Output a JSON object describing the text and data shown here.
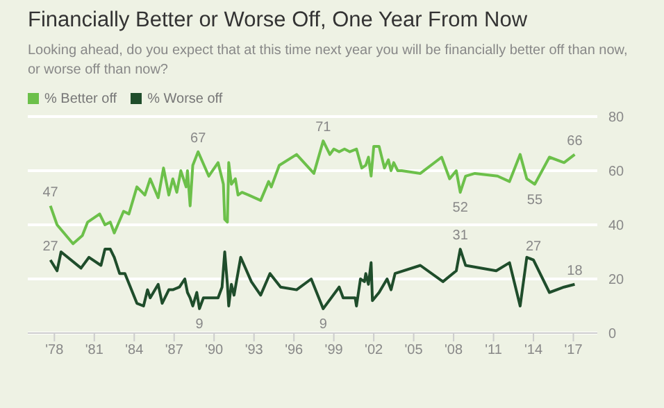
{
  "chart_data": {
    "type": "line",
    "title": "Financially Better or Worse Off, One Year From Now",
    "subtitle": "Looking ahead, do you expect that at this time next year you will be financially better off than now, or worse off than now?",
    "series": [
      {
        "name": "% Better off",
        "color": "#6cc04a",
        "x": [
          1977.7,
          1978.2,
          1979.4,
          1980.1,
          1980.5,
          1981.4,
          1981.8,
          1982.2,
          1982.5,
          1983.2,
          1983.6,
          1984.2,
          1984.6,
          1984.8,
          1985.2,
          1985.8,
          1986.2,
          1986.6,
          1986.9,
          1987.2,
          1987.5,
          1987.9,
          1988.0,
          1988.2,
          1988.4,
          1988.8,
          1989.6,
          1990.3,
          1990.7,
          1990.8,
          1991.0,
          1991.1,
          1991.3,
          1991.6,
          1991.8,
          1992.1,
          1992.6,
          1993.5,
          1994.1,
          1994.3,
          1994.9,
          1996.2,
          1997.5,
          1998.2,
          1998.7,
          1999.0,
          1999.4,
          1999.8,
          2000.2,
          2000.7,
          2001.1,
          2001.4,
          2001.6,
          2001.8,
          2002.0,
          2002.4,
          2002.8,
          2003.1,
          2003.3,
          2003.5,
          2003.8,
          2004.1,
          2005.5,
          2007.1,
          2007.7,
          2008.2,
          2008.5,
          2008.9,
          2009.6,
          2011.3,
          2012.2,
          2013.0,
          2013.5,
          2014.1,
          2015.2,
          2016.3,
          2017.1
        ],
        "values": [
          47,
          40,
          33,
          36,
          41,
          44,
          40,
          41,
          37,
          45,
          44,
          54,
          52,
          51,
          57,
          50,
          61,
          51,
          57,
          52,
          60,
          54,
          60,
          47,
          62,
          67,
          58,
          63,
          55,
          42,
          41,
          63,
          55,
          57,
          51,
          52,
          51,
          49,
          56,
          54,
          62,
          66,
          59,
          71,
          66,
          68,
          67,
          68,
          67,
          68,
          61,
          62,
          65,
          58,
          69,
          69,
          61,
          64,
          60,
          63,
          60,
          60,
          59,
          65,
          57,
          60,
          52,
          58,
          59,
          58,
          56,
          66,
          57,
          55,
          65,
          63,
          66
        ]
      },
      {
        "name": "% Worse off",
        "color": "#1f4d2b",
        "x": [
          1977.7,
          1978.2,
          1978.5,
          1980.0,
          1980.6,
          1981.5,
          1981.8,
          1982.2,
          1982.5,
          1982.9,
          1983.3,
          1984.2,
          1984.7,
          1985.0,
          1985.2,
          1985.8,
          1986.1,
          1986.6,
          1986.9,
          1987.4,
          1987.8,
          1988.0,
          1988.2,
          1988.4,
          1988.7,
          1988.9,
          1989.2,
          1990.3,
          1990.6,
          1990.8,
          1991.0,
          1991.1,
          1991.3,
          1991.5,
          1992.0,
          1992.8,
          1993.5,
          1994.2,
          1995.0,
          1996.2,
          1997.3,
          1998.2,
          1999.4,
          1999.7,
          2000.6,
          2000.7,
          2001.0,
          2001.3,
          2001.4,
          2001.6,
          2001.8,
          2001.9,
          2002.4,
          2003.0,
          2003.3,
          2003.6,
          2005.5,
          2007.2,
          2008.2,
          2008.5,
          2008.9,
          2011.2,
          2012.2,
          2013.0,
          2013.5,
          2014.0,
          2015.2,
          2016.3,
          2017.1
        ],
        "values": [
          27,
          23,
          30,
          24,
          28,
          25,
          31,
          31,
          28,
          22,
          22,
          11,
          10,
          16,
          13,
          18,
          11,
          16,
          16,
          17,
          20,
          15,
          13,
          10,
          15,
          9,
          13,
          13,
          17,
          30,
          18,
          10,
          18,
          14,
          28,
          19,
          14,
          22,
          17,
          16,
          20,
          9,
          17,
          13,
          13,
          10,
          20,
          19,
          22,
          18,
          26,
          12,
          15,
          20,
          16,
          22,
          25,
          19,
          23,
          31,
          25,
          23,
          26,
          10,
          28,
          27,
          15,
          17,
          18
        ]
      }
    ],
    "xlim": [
      1976,
      2018.8
    ],
    "xticks": [
      {
        "value": 1978,
        "label": "'78"
      },
      {
        "value": 1981,
        "label": "'81"
      },
      {
        "value": 1984,
        "label": "'84"
      },
      {
        "value": 1987,
        "label": "'87"
      },
      {
        "value": 1990,
        "label": "'90"
      },
      {
        "value": 1993,
        "label": "'93"
      },
      {
        "value": 1996,
        "label": "'96"
      },
      {
        "value": 1999,
        "label": "'99"
      },
      {
        "value": 2002,
        "label": "'02"
      },
      {
        "value": 2005,
        "label": "'05"
      },
      {
        "value": 2008,
        "label": "'08"
      },
      {
        "value": 2011,
        "label": "'11"
      },
      {
        "value": 2014,
        "label": "'14"
      },
      {
        "value": 2017,
        "label": "'17"
      }
    ],
    "ylim": [
      0,
      80
    ],
    "yticks": [
      0,
      20,
      40,
      60,
      80
    ],
    "grid": "y",
    "legend": "top left",
    "marker": "none",
    "line_style": "solid",
    "annotations": [
      {
        "text": "47",
        "x": 1977.7,
        "y": 47
      },
      {
        "text": "27",
        "x": 1977.7,
        "y": 27
      },
      {
        "text": "67",
        "x": 1988.8,
        "y": 67
      },
      {
        "text": "9",
        "x": 1988.9,
        "y": 9
      },
      {
        "text": "71",
        "x": 1998.2,
        "y": 71
      },
      {
        "text": "9",
        "x": 1998.2,
        "y": 9
      },
      {
        "text": "52",
        "x": 2008.5,
        "y": 52
      },
      {
        "text": "31",
        "x": 2008.5,
        "y": 31
      },
      {
        "text": "55",
        "x": 2014.1,
        "y": 55
      },
      {
        "text": "27",
        "x": 2014.0,
        "y": 27
      },
      {
        "text": "66",
        "x": 2017.1,
        "y": 66
      },
      {
        "text": "18",
        "x": 2017.1,
        "y": 18
      }
    ]
  }
}
